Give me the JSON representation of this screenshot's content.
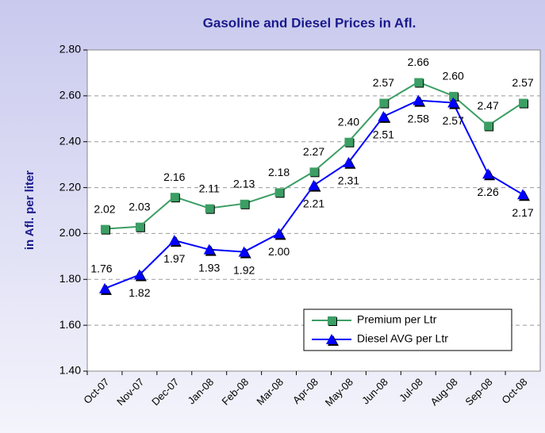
{
  "chart_data": {
    "type": "line",
    "title": "Gasoline and Diesel Prices in Afl.",
    "y_label": "in Afl. per liter",
    "categories": [
      "Oct-07",
      "Nov-07",
      "Dec-07",
      "Jan-08",
      "Feb-08",
      "Mar-08",
      "Apr-08",
      "May-08",
      "Jun-08",
      "Jul-08",
      "Aug-08",
      "Sep-08",
      "Oct-08"
    ],
    "series": [
      {
        "name": "Premium per Ltr",
        "color": "#3c9e64",
        "marker": "square",
        "values": [
          2.02,
          2.03,
          2.16,
          2.11,
          2.13,
          2.18,
          2.27,
          2.4,
          2.57,
          2.66,
          2.6,
          2.47,
          2.57
        ],
        "value_labels": [
          "2.02",
          "2.03",
          "2.16",
          "2.11",
          "2.13",
          "2.18",
          "2.27",
          "2.40",
          "2.57",
          "2.66",
          "2.60",
          "2.47",
          "2.57"
        ]
      },
      {
        "name": "Diesel AVG per Ltr",
        "color": "#0000ff",
        "marker": "triangle",
        "values": [
          1.76,
          1.82,
          1.97,
          1.93,
          1.92,
          2.0,
          2.21,
          2.31,
          2.51,
          2.58,
          2.57,
          2.26,
          2.17
        ],
        "value_labels": [
          "1.76",
          "1.82",
          "1.97",
          "1.93",
          "1.92",
          "2.00",
          "2.21",
          "2.31",
          "2.51",
          "2.58",
          "2.57",
          "2.26",
          "2.17"
        ]
      }
    ],
    "ylim": [
      1.4,
      2.8
    ],
    "yticks": [
      {
        "value": 1.4,
        "label": "1.40"
      },
      {
        "value": 1.6,
        "label": "1.60"
      },
      {
        "value": 1.8,
        "label": "1.80"
      },
      {
        "value": 2.0,
        "label": "2.00"
      },
      {
        "value": 2.2,
        "label": "2.20"
      },
      {
        "value": 2.4,
        "label": "2.40"
      },
      {
        "value": 2.6,
        "label": "2.60"
      },
      {
        "value": 2.8,
        "label": "2.80"
      }
    ],
    "grid": true,
    "legend": "lower right"
  }
}
